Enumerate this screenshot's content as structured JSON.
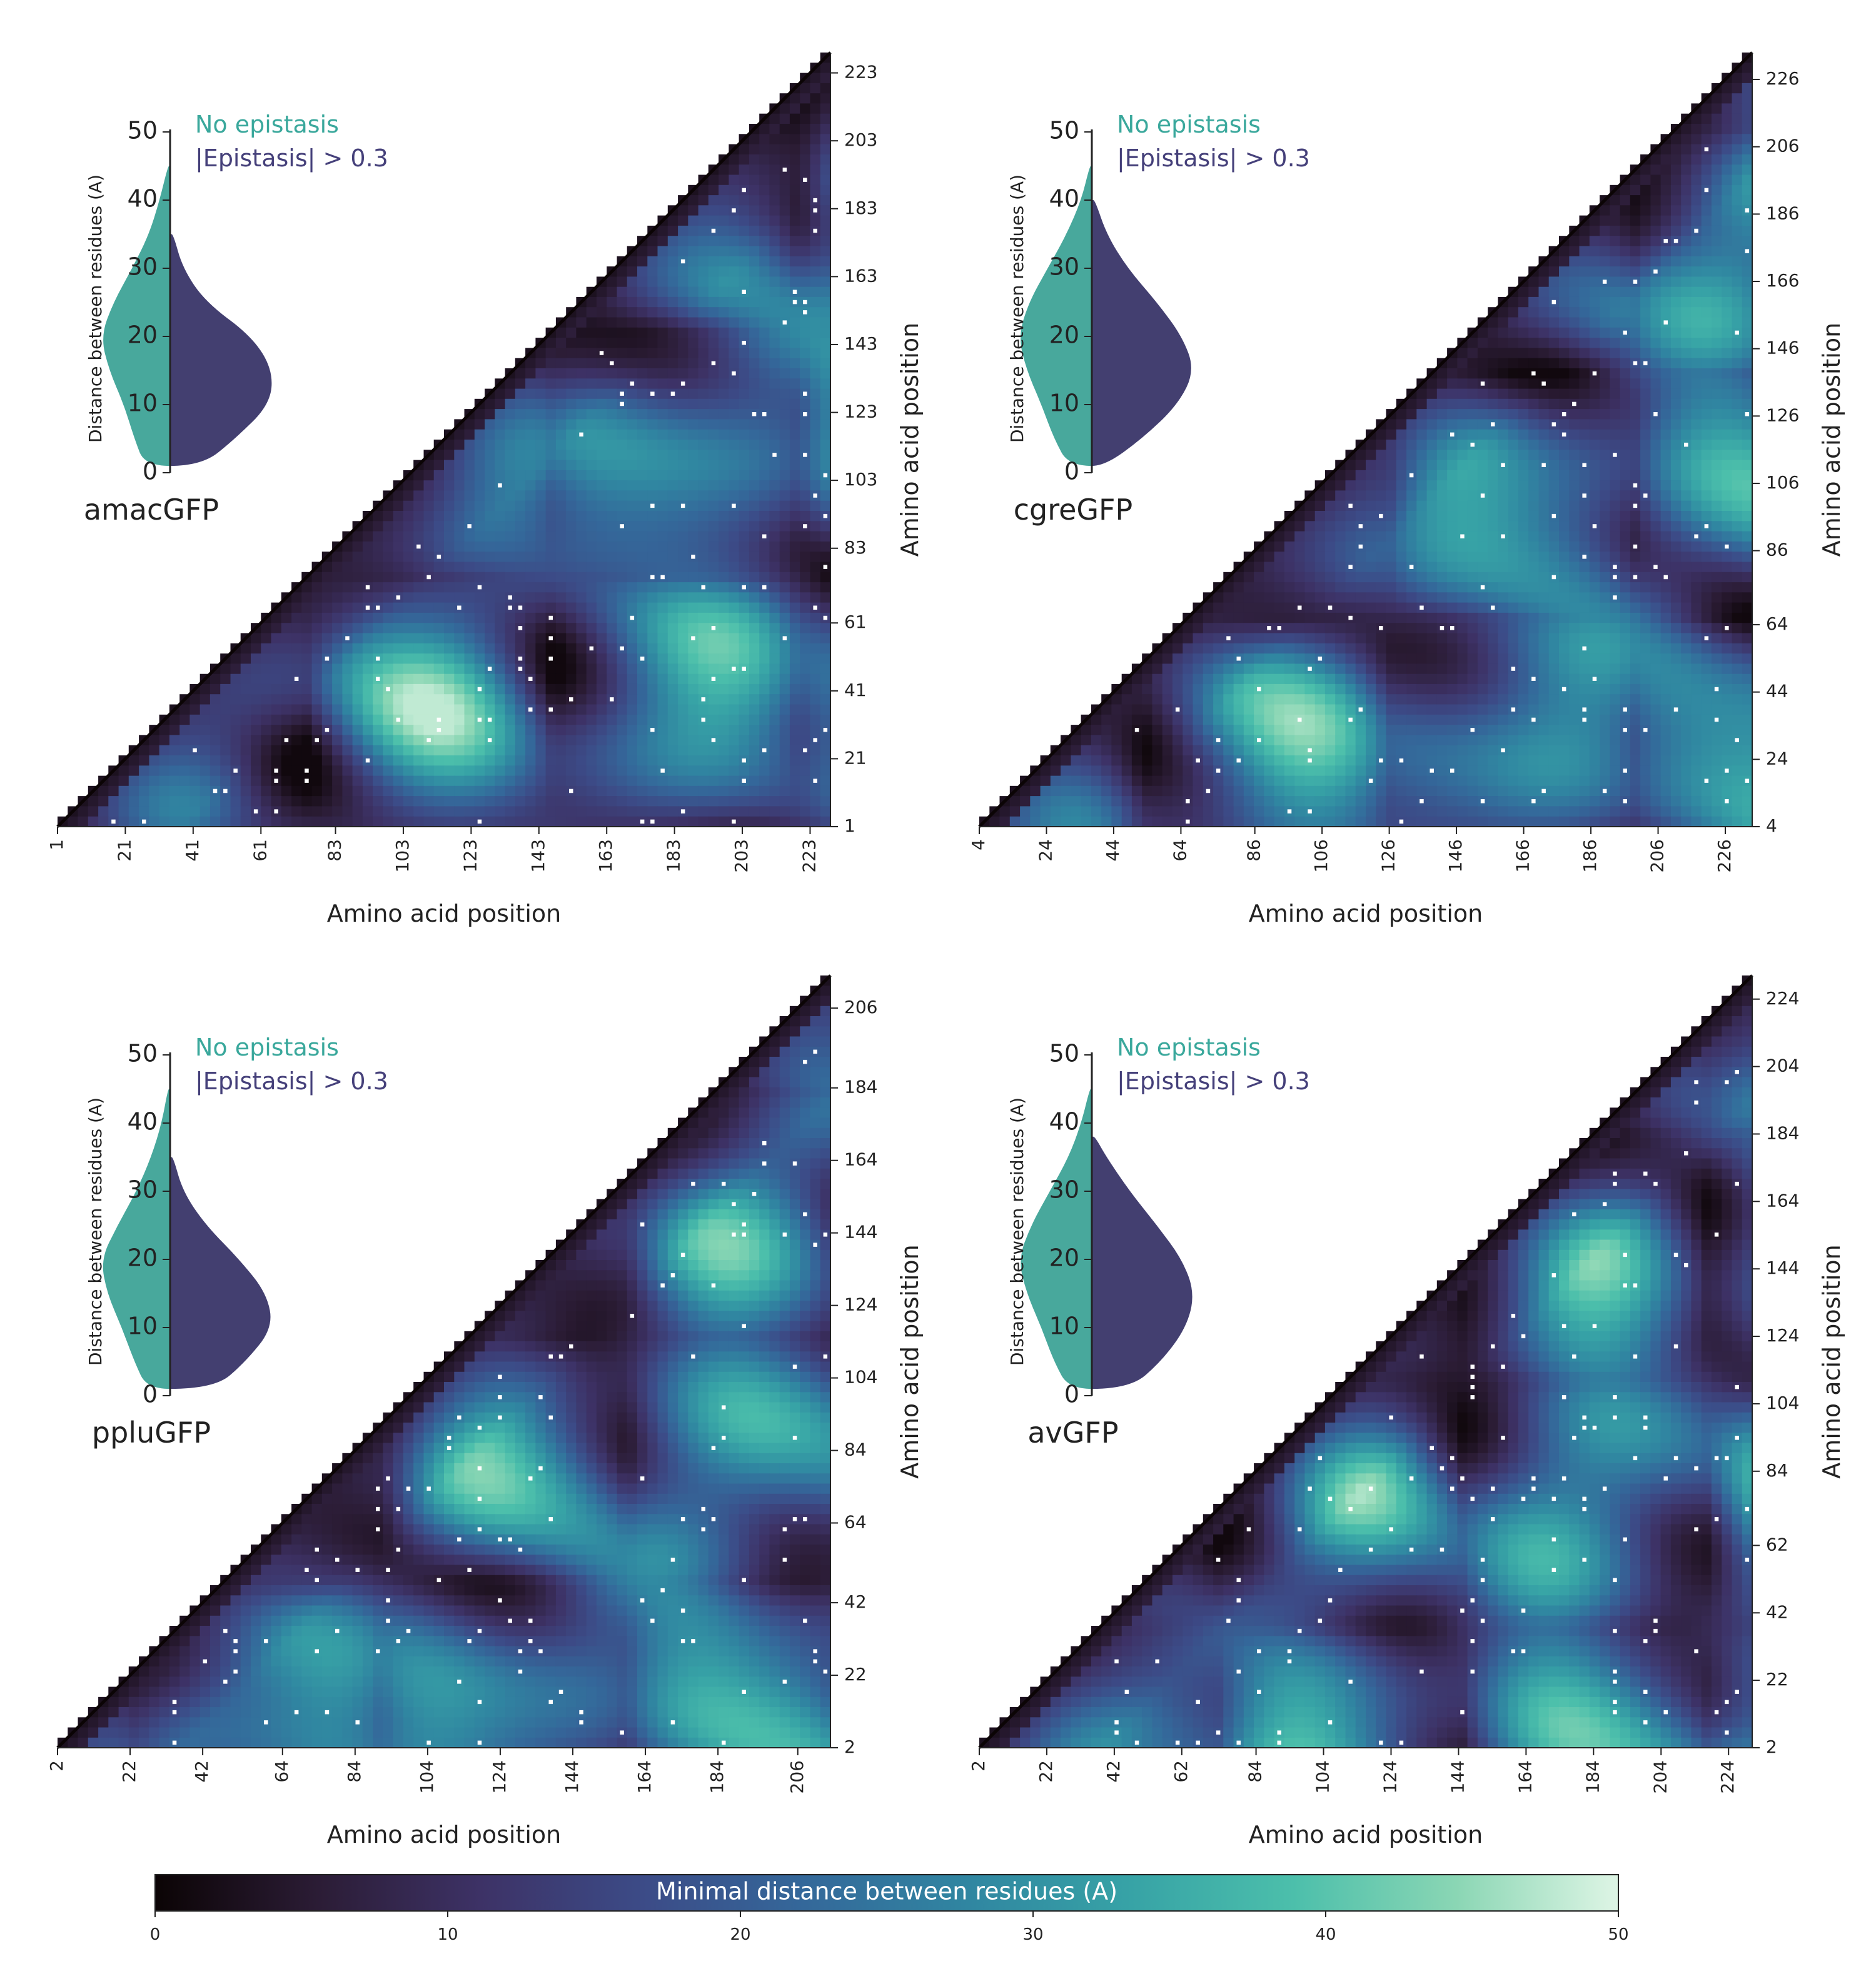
{
  "figure": {
    "x_axis_label": "Amino acid position",
    "y_axis_label": "Amino acid position",
    "inset_y_label": "Distance between residues (A)",
    "inset_y_ticks": [
      0,
      10,
      20,
      30,
      40,
      50
    ],
    "legend_no_epistasis": "No epistasis",
    "legend_epistasis": "|Epistasis| > 0.3",
    "colors": {
      "no_epistasis": "#48a89c",
      "no_epistasis_text": "#3aa89c",
      "epistasis": "#433f70",
      "epistasis_text": "#45407a",
      "colormap": [
        "#0b0405",
        "#2b1c35",
        "#3d3266",
        "#3c4b87",
        "#34689a",
        "#3086a1",
        "#37a3a6",
        "#4cbfab",
        "#8ad6b4",
        "#def5e5"
      ]
    },
    "colorbar": {
      "label": "Minimal distance between residues (A)",
      "ticks": [
        0,
        10,
        20,
        30,
        40,
        50
      ],
      "min": 0,
      "max": 50
    }
  },
  "chart_data": [
    {
      "type": "heatmap",
      "name": "amacGFP",
      "xlabel": "Amino acid position",
      "ylabel": "Amino acid position",
      "tick_labels": [
        "1",
        "21",
        "41",
        "61",
        "83",
        "103",
        "123",
        "143",
        "163",
        "183",
        "203",
        "223"
      ],
      "position_range": [
        1,
        229
      ],
      "value_range": [
        0,
        50
      ],
      "epistasis_marker": "white cells",
      "inset": {
        "type": "violin",
        "ylabel": "Distance between residues (A)",
        "ylim": [
          0,
          50
        ],
        "no_epistasis_profile": {
          "d": [
            1,
            5,
            10,
            15,
            20,
            25,
            30,
            35,
            40,
            45
          ],
          "half_width": [
            0.24,
            0.34,
            0.44,
            0.58,
            0.66,
            0.54,
            0.36,
            0.2,
            0.1,
            0.02
          ]
        },
        "epistasis_profile": {
          "d": [
            1,
            5,
            10,
            15,
            20,
            25,
            30,
            35
          ],
          "half_width": [
            0.3,
            0.62,
            0.95,
            0.98,
            0.78,
            0.34,
            0.12,
            0.03
          ]
        }
      }
    },
    {
      "type": "heatmap",
      "name": "cgreGFP",
      "xlabel": "Amino acid position",
      "ylabel": "Amino acid position",
      "tick_labels": [
        "4",
        "24",
        "44",
        "64",
        "86",
        "106",
        "126",
        "146",
        "166",
        "186",
        "206",
        "226"
      ],
      "position_range": [
        4,
        234
      ],
      "value_range": [
        0,
        50
      ],
      "epistasis_marker": "white cells",
      "inset": {
        "type": "violin",
        "ylabel": "Distance between residues (A)",
        "ylim": [
          0,
          50
        ],
        "no_epistasis_profile": {
          "d": [
            1,
            5,
            10,
            15,
            20,
            25,
            30,
            35,
            40,
            45
          ],
          "half_width": [
            0.22,
            0.36,
            0.48,
            0.62,
            0.7,
            0.6,
            0.42,
            0.24,
            0.1,
            0.02
          ]
        },
        "epistasis_profile": {
          "d": [
            1,
            5,
            10,
            15,
            20,
            25,
            30,
            35,
            40
          ],
          "half_width": [
            0.12,
            0.48,
            0.82,
            0.98,
            0.86,
            0.62,
            0.34,
            0.14,
            0.03
          ]
        }
      }
    },
    {
      "type": "heatmap",
      "name": "ppluGFP",
      "xlabel": "Amino acid position",
      "ylabel": "Amino acid position",
      "tick_labels": [
        "2",
        "22",
        "42",
        "64",
        "84",
        "104",
        "124",
        "144",
        "164",
        "184",
        "206"
      ],
      "position_range": [
        2,
        215
      ],
      "value_range": [
        0,
        50
      ],
      "epistasis_marker": "white cells",
      "inset": {
        "type": "violin",
        "ylabel": "Distance between residues (A)",
        "ylim": [
          0,
          50
        ],
        "no_epistasis_profile": {
          "d": [
            1,
            5,
            10,
            15,
            20,
            25,
            30,
            35,
            40,
            45
          ],
          "half_width": [
            0.22,
            0.34,
            0.46,
            0.6,
            0.66,
            0.5,
            0.32,
            0.18,
            0.08,
            0.02
          ]
        },
        "epistasis_profile": {
          "d": [
            1,
            5,
            10,
            15,
            20,
            25,
            30,
            35
          ],
          "half_width": [
            0.42,
            0.72,
            0.98,
            0.92,
            0.66,
            0.34,
            0.12,
            0.03
          ]
        }
      }
    },
    {
      "type": "heatmap",
      "name": "avGFP",
      "xlabel": "Amino acid position",
      "ylabel": "Amino acid position",
      "tick_labels": [
        "2",
        "22",
        "42",
        "62",
        "84",
        "104",
        "124",
        "144",
        "164",
        "184",
        "204",
        "224"
      ],
      "position_range": [
        2,
        231
      ],
      "value_range": [
        0,
        50
      ],
      "epistasis_marker": "white cells",
      "inset": {
        "type": "violin",
        "ylabel": "Distance between residues (A)",
        "ylim": [
          0,
          50
        ],
        "no_epistasis_profile": {
          "d": [
            1,
            5,
            10,
            15,
            20,
            25,
            30,
            35,
            40,
            45
          ],
          "half_width": [
            0.22,
            0.36,
            0.48,
            0.62,
            0.7,
            0.58,
            0.4,
            0.22,
            0.1,
            0.02
          ]
        },
        "epistasis_profile": {
          "d": [
            1,
            5,
            10,
            15,
            20,
            25,
            30,
            35,
            38
          ],
          "half_width": [
            0.36,
            0.66,
            0.9,
            0.98,
            0.86,
            0.62,
            0.36,
            0.14,
            0.03
          ]
        }
      }
    }
  ]
}
